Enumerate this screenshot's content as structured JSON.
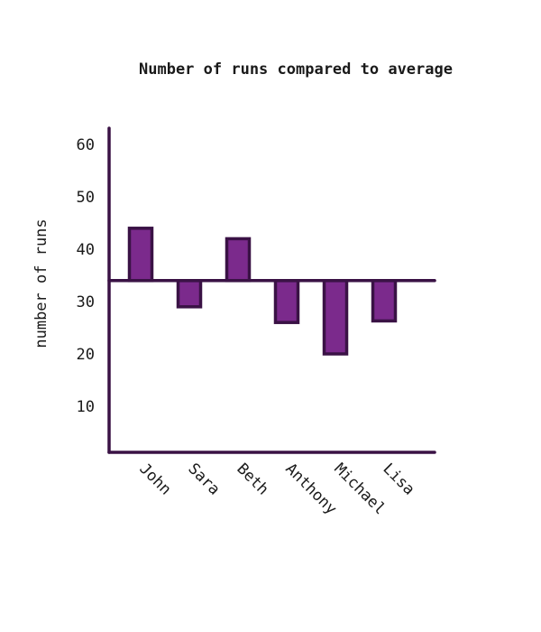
{
  "chart_data": {
    "type": "bar",
    "title": "Number of runs compared to average",
    "xlabel": "",
    "ylabel": "number of runs",
    "baseline": 34,
    "categories": [
      "John",
      "Sara",
      "Beth",
      "Anthony",
      "Michael",
      "Lisa"
    ],
    "values": [
      44,
      29,
      42,
      26,
      20,
      26.3
    ],
    "ylim": [
      0,
      63
    ],
    "yticks": [
      10,
      20,
      30,
      40,
      50,
      60
    ],
    "grid": false,
    "legend": "none"
  },
  "colors": {
    "bar_fill": "#7b2a8c",
    "bar_stroke": "#3a1245",
    "axis": "#3a1245",
    "text": "#1a1a1a"
  }
}
